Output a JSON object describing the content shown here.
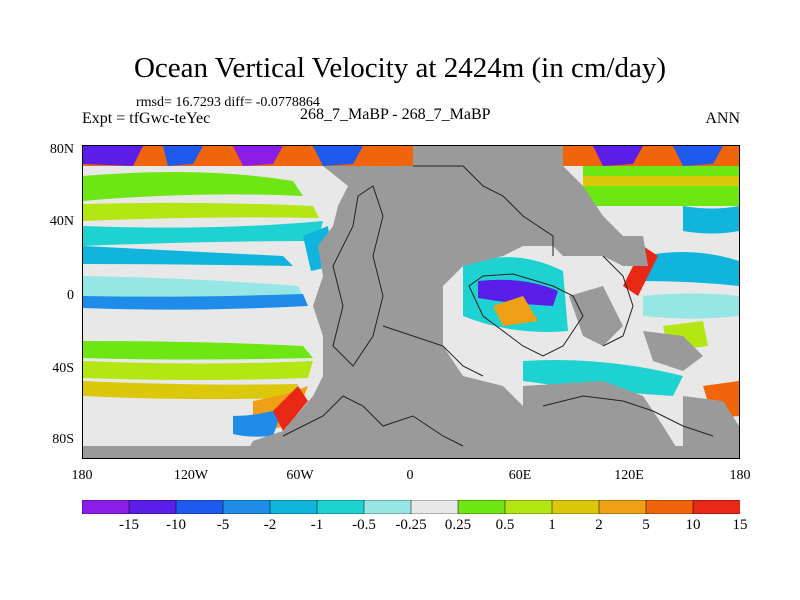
{
  "title": "Ocean Vertical Velocity at 2424m (in cm/day)",
  "stats": "rmsd= 16.7293 diff= -0.0778864",
  "expt": "Expt = tfGwc-teYec",
  "subtitle": "268_7_MaBP - 268_7_MaBP",
  "season": "ANN",
  "lat_labels": [
    "80N",
    "40N",
    "0",
    "40S",
    "80S"
  ],
  "lon_labels": [
    "180",
    "120W",
    "60W",
    "0",
    "60E",
    "120E",
    "180"
  ],
  "colorbar_labels": [
    "-15",
    "-10",
    "-5",
    "-2",
    "-1",
    "-0.5",
    "-0.25",
    "0.25",
    "0.5",
    "1",
    "2",
    "5",
    "10",
    "15"
  ],
  "colorbar_colors": [
    "#8a1ee8",
    "#5a1ee8",
    "#1e5aee",
    "#1e8ce8",
    "#10b4dc",
    "#1ed2d2",
    "#96e6e6",
    "#e8e8e8",
    "#6ee614",
    "#b4e614",
    "#dcc80a",
    "#f0a014",
    "#f0640a",
    "#e62814"
  ],
  "colors": {
    "land": "#9a9a9a",
    "coast": "#222222"
  }
}
